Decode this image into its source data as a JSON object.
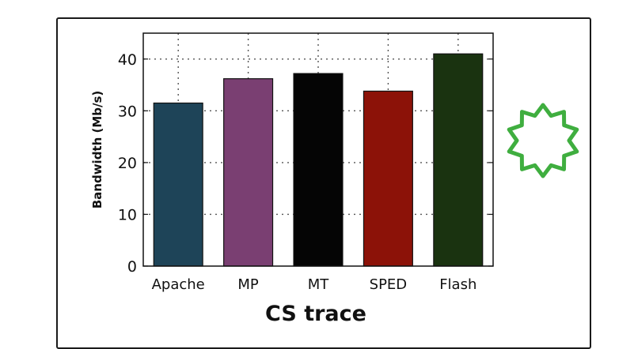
{
  "chart_data": {
    "type": "bar",
    "categories": [
      "Apache",
      "MP",
      "MT",
      "SPED",
      "Flash"
    ],
    "values": [
      31.5,
      36.2,
      37.2,
      33.8,
      41.0
    ],
    "bar_colors": [
      "#1e4458",
      "#7a3f72",
      "#050505",
      "#8c1208",
      "#1a3310"
    ],
    "xlabel": "CS trace",
    "ylabel": "Bandwidth (Mb/s)",
    "ylim": [
      0,
      45
    ],
    "yticks": [
      0,
      10,
      20,
      30,
      40
    ],
    "grid": true
  },
  "decoration": {
    "icon": "starburst-icon",
    "color": "#3fae3f"
  }
}
